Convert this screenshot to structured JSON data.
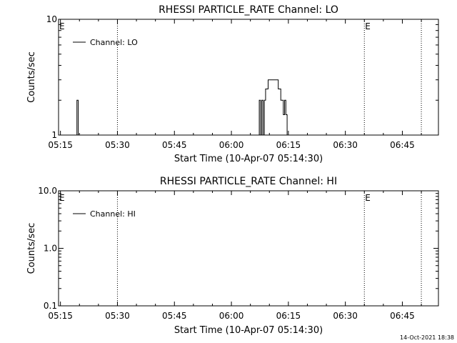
{
  "footer": {
    "timestamp": "14-Oct-2021 18:38"
  },
  "chart_data": [
    {
      "type": "line",
      "title": "RHESSI PARTICLE_RATE Channel: LO",
      "xlabel": "Start Time (10-Apr-07 05:14:30)",
      "ylabel": "Counts/sec",
      "y_scale": "log",
      "xlim": [
        "05:14:30",
        "06:54:30"
      ],
      "ylim": [
        1,
        10
      ],
      "x_tick_labels": [
        "05:15",
        "05:30",
        "05:45",
        "06:00",
        "06:15",
        "06:30",
        "06:45"
      ],
      "x_ticks": [
        "05:15",
        "05:30",
        "05:45",
        "06:00",
        "06:15",
        "06:30",
        "06:45"
      ],
      "y_ticks": [
        1,
        10
      ],
      "y_tick_labels": [
        "1",
        "10"
      ],
      "legend": {
        "placement": "top-left",
        "entries": [
          "Channel: LO"
        ]
      },
      "markers": [
        {
          "label": "E",
          "time": "05:14:30",
          "style": "none"
        },
        {
          "label": "",
          "time": "05:30:00",
          "style": "dotted"
        },
        {
          "label": "E",
          "time": "06:35:00",
          "style": "dotted"
        },
        {
          "label": "",
          "time": "06:50:00",
          "style": "dotted"
        }
      ],
      "series": [
        {
          "name": "Channel: LO",
          "step": true,
          "points": [
            [
              "05:19:00",
              1
            ],
            [
              "05:19:20",
              2
            ],
            [
              "05:19:40",
              1
            ],
            [
              "06:07:00",
              1
            ],
            [
              "06:07:20",
              2
            ],
            [
              "06:07:40",
              1
            ],
            [
              "06:08:00",
              2
            ],
            [
              "06:08:20",
              1
            ],
            [
              "06:08:40",
              2
            ],
            [
              "06:09:00",
              2.5
            ],
            [
              "06:09:40",
              3
            ],
            [
              "06:12:00",
              3
            ],
            [
              "06:12:20",
              2.5
            ],
            [
              "06:13:00",
              2
            ],
            [
              "06:13:40",
              1.5
            ],
            [
              "06:14:00",
              2
            ],
            [
              "06:14:20",
              1.5
            ],
            [
              "06:14:40",
              1
            ]
          ]
        }
      ]
    },
    {
      "type": "line",
      "title": "RHESSI PARTICLE_RATE Channel: HI",
      "xlabel": "Start Time (10-Apr-07 05:14:30)",
      "ylabel": "Counts/sec",
      "y_scale": "log",
      "xlim": [
        "05:14:30",
        "06:54:30"
      ],
      "ylim": [
        0.1,
        10
      ],
      "x_tick_labels": [
        "05:15",
        "05:30",
        "05:45",
        "06:00",
        "06:15",
        "06:30",
        "06:45"
      ],
      "x_ticks": [
        "05:15",
        "05:30",
        "05:45",
        "06:00",
        "06:15",
        "06:30",
        "06:45"
      ],
      "y_ticks": [
        0.1,
        1.0,
        10.0
      ],
      "y_tick_labels": [
        "0.1",
        "1.0",
        "10.0"
      ],
      "legend": {
        "placement": "top-left",
        "entries": [
          "Channel: HI"
        ]
      },
      "markers": [
        {
          "label": "E",
          "time": "05:14:30",
          "style": "none"
        },
        {
          "label": "",
          "time": "05:30:00",
          "style": "dotted"
        },
        {
          "label": "E",
          "time": "06:35:00",
          "style": "dotted"
        },
        {
          "label": "",
          "time": "06:50:00",
          "style": "dotted"
        }
      ],
      "series": [
        {
          "name": "Channel: HI",
          "step": true,
          "points": []
        }
      ]
    }
  ]
}
